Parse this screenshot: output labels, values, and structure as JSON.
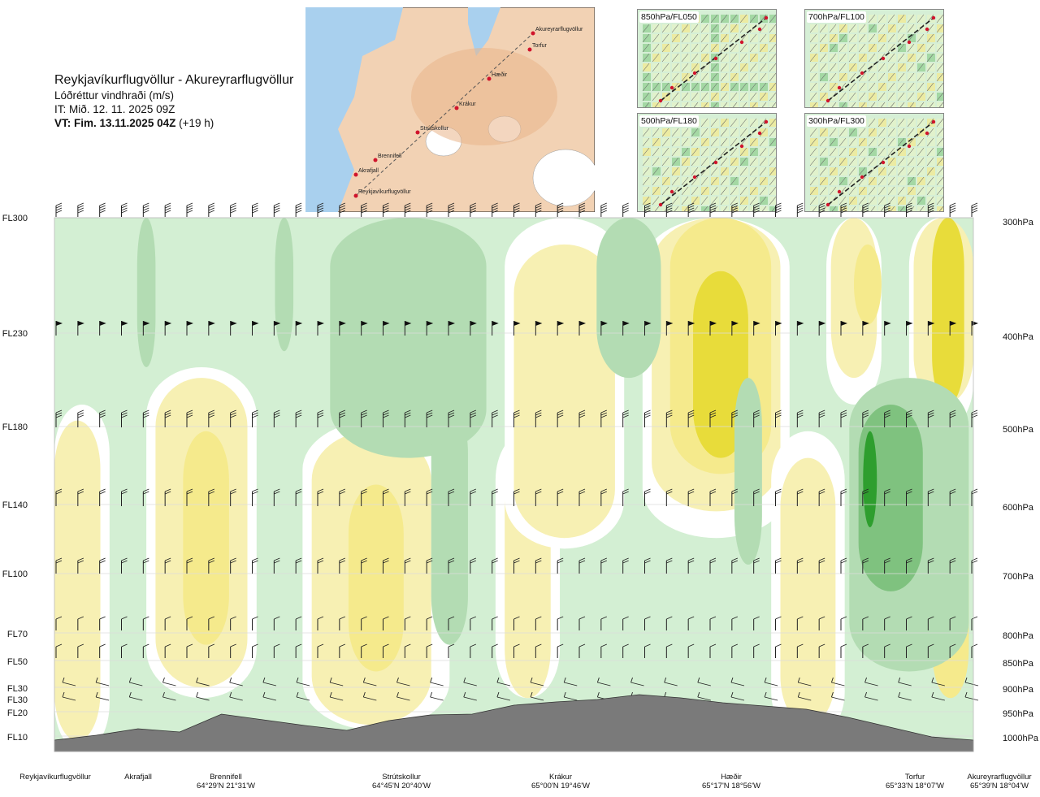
{
  "header": {
    "title": "Reykjavíkurflugvöllur - Akureyrarflugvöllur",
    "parameter": "Lóðréttur vindhraði (m/s)",
    "init_time": "IT: Mið. 12. 11. 2025 09Z",
    "valid_time": "VT: Fim. 13.11.2025 04Z",
    "lead": "(+19 h)"
  },
  "map": {
    "places": [
      "Akureyrarflugvöllur",
      "Torfur",
      "Hæðir",
      "Krákur",
      "Strútskollur",
      "Brennifell",
      "Akrafjall",
      "Reykjavíkurflugvöllur"
    ]
  },
  "panels": [
    {
      "label": "850hPa/FL050"
    },
    {
      "label": "700hPa/FL100"
    },
    {
      "label": "500hPa/FL180"
    },
    {
      "label": "300hPa/FL300"
    }
  ],
  "levels": [
    {
      "fl": "FL300",
      "hpa": "300hPa"
    },
    {
      "fl": "FL230",
      "hpa": "400hPa"
    },
    {
      "fl": "FL180",
      "hpa": "500hPa"
    },
    {
      "fl": "FL140",
      "hpa": "600hPa"
    },
    {
      "fl": "FL100",
      "hpa": "700hPa"
    },
    {
      "fl": "FL70",
      "hpa": "800hPa"
    },
    {
      "fl": "FL50",
      "hpa": "850hPa"
    },
    {
      "fl": "FL30",
      "hpa": "900hPa"
    },
    {
      "fl": "FL30",
      "hpa": ""
    },
    {
      "fl": "FL20",
      "hpa": "950hPa"
    },
    {
      "fl": "FL10",
      "hpa": "1000hPa"
    }
  ],
  "locations": [
    {
      "name": "Reykjavíkurflugvöllur",
      "coord": ""
    },
    {
      "name": "Akrafjall",
      "coord": ""
    },
    {
      "name": "Brennifell",
      "coord": "64°29'N 21°31'W"
    },
    {
      "name": "Strútskollur",
      "coord": "64°45'N 20°40'W"
    },
    {
      "name": "Krákur",
      "coord": "65°00'N 19°46'W"
    },
    {
      "name": "Hæðir",
      "coord": "65°17'N 18°56'W"
    },
    {
      "name": "Torfur",
      "coord": "65°33'N 18°07'W"
    },
    {
      "name": "Akureyrarflugvöllur",
      "coord": "65°39'N 18°04'W"
    }
  ],
  "chart_data": {
    "type": "heatmap",
    "title": "Lóðréttur vindhraði (m/s)",
    "xlabel": "",
    "ylabel": "",
    "x_categories": [
      "Reykjavíkurflugvöllur",
      "Akrafjall",
      "Brennifell",
      "Strútskollur",
      "Krákur",
      "Hæðir",
      "Torfur",
      "Akureyrarflugvöllur"
    ],
    "y_levels_hpa": [
      1000,
      950,
      900,
      850,
      800,
      700,
      600,
      500,
      400,
      300
    ],
    "colors": {
      "strong_down": "#2e9e2e",
      "down": "#7fc27f",
      "weak_down": "#b3dcb3",
      "near_zero_down": "#d3efd3",
      "neutral": "#ffffff",
      "near_zero_up": "#f7f0b3",
      "weak_up": "#f5ea8c",
      "up": "#e8dc3a",
      "terrain": "#7a7a7a"
    },
    "terrain_profile_m": [
      0,
      60,
      140,
      100,
      320,
      250,
      180,
      120,
      240,
      310,
      320,
      430,
      470,
      500,
      560,
      520,
      460,
      420,
      380,
      280,
      160,
      40,
      0
    ],
    "grid": true,
    "legend": "none"
  }
}
